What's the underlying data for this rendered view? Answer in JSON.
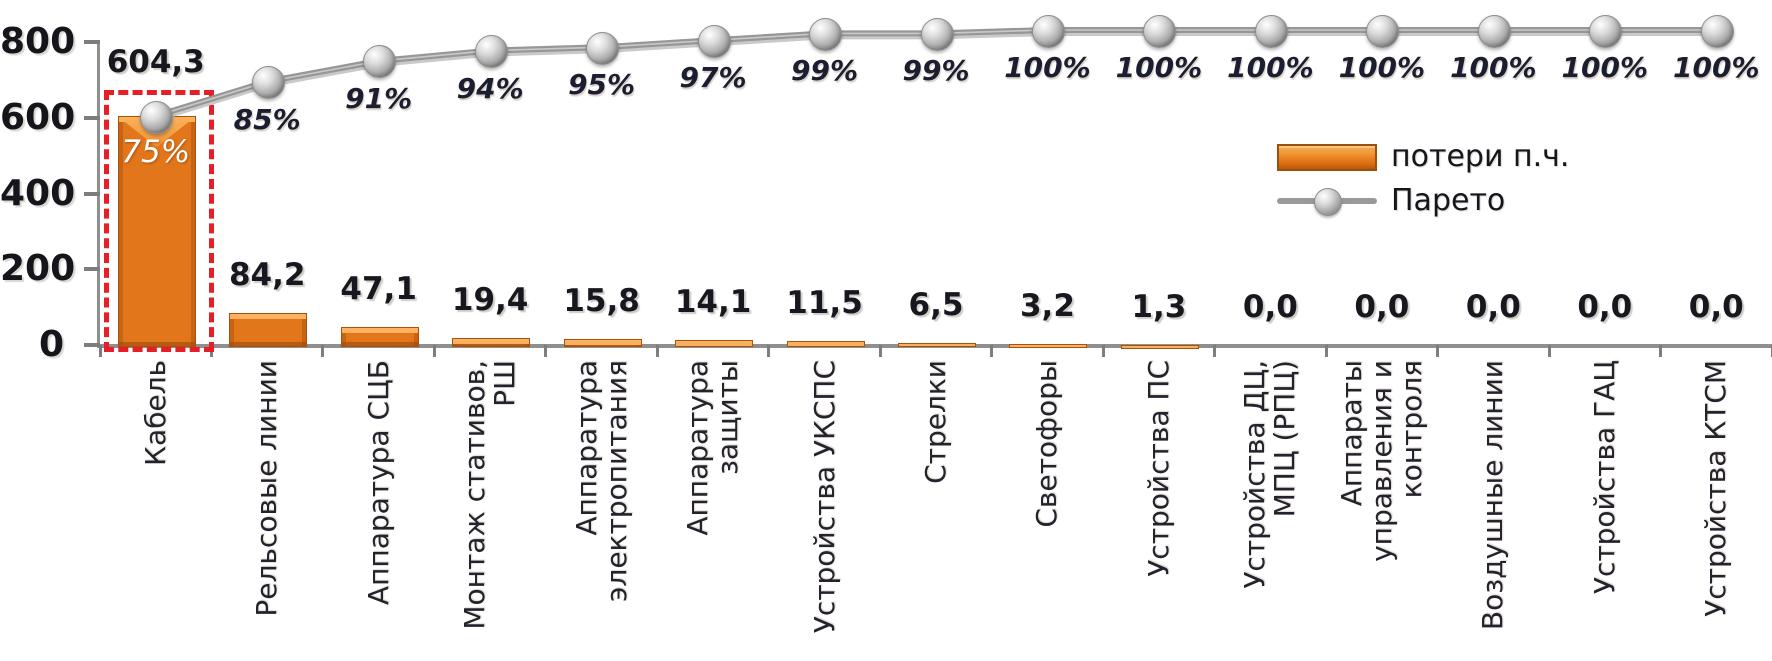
{
  "legend": {
    "bar_label": "потери п.ч.",
    "line_label": "Парето"
  },
  "chart_data": {
    "type": "bar",
    "subtype": "pareto-combo",
    "title": "",
    "xlabel": "",
    "ylabel": "",
    "categories": [
      [
        "Кабель"
      ],
      [
        "Рельсовые линии"
      ],
      [
        "Аппаратура СЦБ"
      ],
      [
        "Монтаж стативов,",
        "РШ"
      ],
      [
        "Аппаратура",
        "электропитания"
      ],
      [
        "Аппаратура",
        "защиты"
      ],
      [
        "Устройства УКСПС"
      ],
      [
        "Стрелки"
      ],
      [
        "Светофоры"
      ],
      [
        "Устройства ПС"
      ],
      [
        "Устройства ДЦ,",
        "МПЦ (РПЦ)"
      ],
      [
        "Аппараты",
        "управления и",
        "контроля"
      ],
      [
        "Воздушные линии"
      ],
      [
        "Устройства ГАЦ"
      ],
      [
        "Устройства КТСМ"
      ]
    ],
    "series": [
      {
        "name": "потери п.ч.",
        "type": "bar",
        "values": [
          604.3,
          84.2,
          47.1,
          19.4,
          15.8,
          14.1,
          11.5,
          6.5,
          3.2,
          1.3,
          0,
          0,
          0,
          0,
          0
        ],
        "data_labels": [
          "604,3",
          "84,2",
          "47,1",
          "19,4",
          "15,8",
          "14,1",
          "11,5",
          "6,5",
          "3,2",
          "1,3",
          "0,0",
          "0,0",
          "0,0",
          "0,0",
          "0,0"
        ]
      },
      {
        "name": "Парето",
        "type": "line",
        "values": [
          75,
          85,
          91,
          94,
          95,
          97,
          99,
          99,
          100,
          100,
          100,
          100,
          100,
          100,
          100
        ],
        "data_labels": [
          "75%",
          "85%",
          "91%",
          "94%",
          "95%",
          "97%",
          "99%",
          "99%",
          "100%",
          "100%",
          "100%",
          "100%",
          "100%",
          "100%",
          "100%"
        ]
      }
    ],
    "y_axis": {
      "min": 0,
      "max": 800,
      "tick_values": [
        800,
        600,
        400,
        200,
        0
      ],
      "tick_labels": [
        "800",
        "600",
        "400",
        "200",
        "0"
      ]
    },
    "secondary_axis": {
      "unit": "%",
      "range": [
        0,
        100
      ],
      "labels_visible": false
    },
    "grid": "off",
    "legend_position": "middle-right",
    "annotations": {
      "first_bar_highlight": "red dashed rectangle around first bar",
      "pct_label_inside_first_bar": "75%"
    },
    "colors": {
      "bar": "#E2761B",
      "bar_highlight": "#F7A24A",
      "bar_edge": "#A8520A",
      "line": "#9A9A9A",
      "marker": "#B9B9B9",
      "highlight_box": "#E61E28",
      "value_text": "#17171F",
      "pct_text": "#1B1D30",
      "pct_inside_text": "#FFFFFF"
    }
  }
}
